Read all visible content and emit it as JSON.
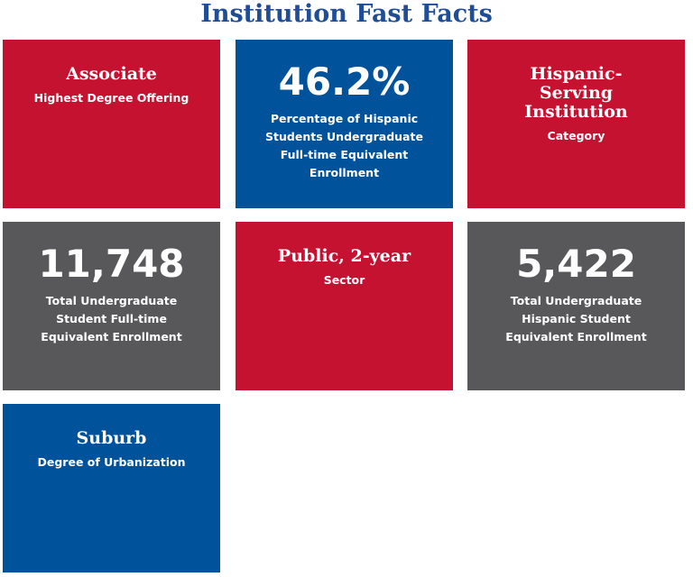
{
  "header": {
    "title": "Institution Fast Facts"
  },
  "tiles": [
    {
      "value": "Associate",
      "label": "Highest Degree Offering",
      "color": "#c41230"
    },
    {
      "value": "46.2%",
      "label": "Percentage of Hispanic Students Undergraduate Full-time Equivalent Enrollment",
      "color": "#00529b"
    },
    {
      "value": "Hispanic-Serving Institution",
      "label": "Category",
      "color": "#c41230"
    },
    {
      "value": "11,748",
      "label": "Total Undergraduate Student Full-time Equivalent Enrollment",
      "color": "#58585a"
    },
    {
      "value": "Public, 2-year",
      "label": "Sector",
      "color": "#c41230"
    },
    {
      "value": "5,422",
      "label": "Total Undergraduate Hispanic Student Equivalent Enrollment",
      "color": "#58585a"
    },
    {
      "value": "Suburb",
      "label": "Degree of Urbanization",
      "color": "#00529b"
    }
  ]
}
